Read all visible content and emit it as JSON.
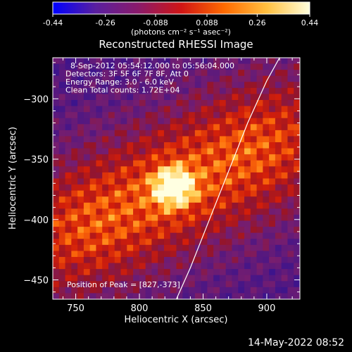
{
  "chart_data": {
    "type": "heatmap",
    "title": "Reconstructed RHESSI Image",
    "xlabel": "Heliocentric X (arcsec)",
    "ylabel": "Heliocentric Y (arcsec)",
    "xlim": [
      732,
      926
    ],
    "ylim": [
      -466,
      -266
    ],
    "xticks": [
      750,
      800,
      850,
      900
    ],
    "yticks": [
      -300,
      -350,
      -400,
      -450
    ],
    "colorbar": {
      "min": -0.44,
      "max": 0.44,
      "ticks": [
        "-0.44",
        "-0.26",
        "-0.088",
        "0.088",
        "0.26",
        "0.44"
      ],
      "tick_values": [
        -0.44,
        -0.26,
        -0.088,
        0.088,
        0.26,
        0.44
      ],
      "unit_label": "(photons cm⁻² s⁻¹ asec⁻²)",
      "colors": [
        "#0000ff",
        "#5a1f9f",
        "#8a1a6a",
        "#d01515",
        "#ff6a00",
        "#ffc040",
        "#ffffdd"
      ]
    },
    "annotations": [
      "8-Sep-2012 05:54:12.000 to 05:56:04.000",
      "Detectors: 3F 5F 6F 7F 8F, Att 0",
      "Energy Range: 3.0 - 6.0 keV",
      "Clean     Total counts: 1.72E+04"
    ],
    "peak_label": "Position of Peak = [827,-373]",
    "peak": {
      "x": 827,
      "y": -373,
      "value": 0.44
    },
    "limb_curve": [
      [
        829,
        -466
      ],
      [
        840,
        -440
      ],
      [
        855,
        -400
      ],
      [
        870,
        -360
      ],
      [
        885,
        -320
      ],
      [
        900,
        -285
      ],
      [
        910,
        -266
      ]
    ]
  },
  "footer_timestamp": "14-May-2022 08:52"
}
